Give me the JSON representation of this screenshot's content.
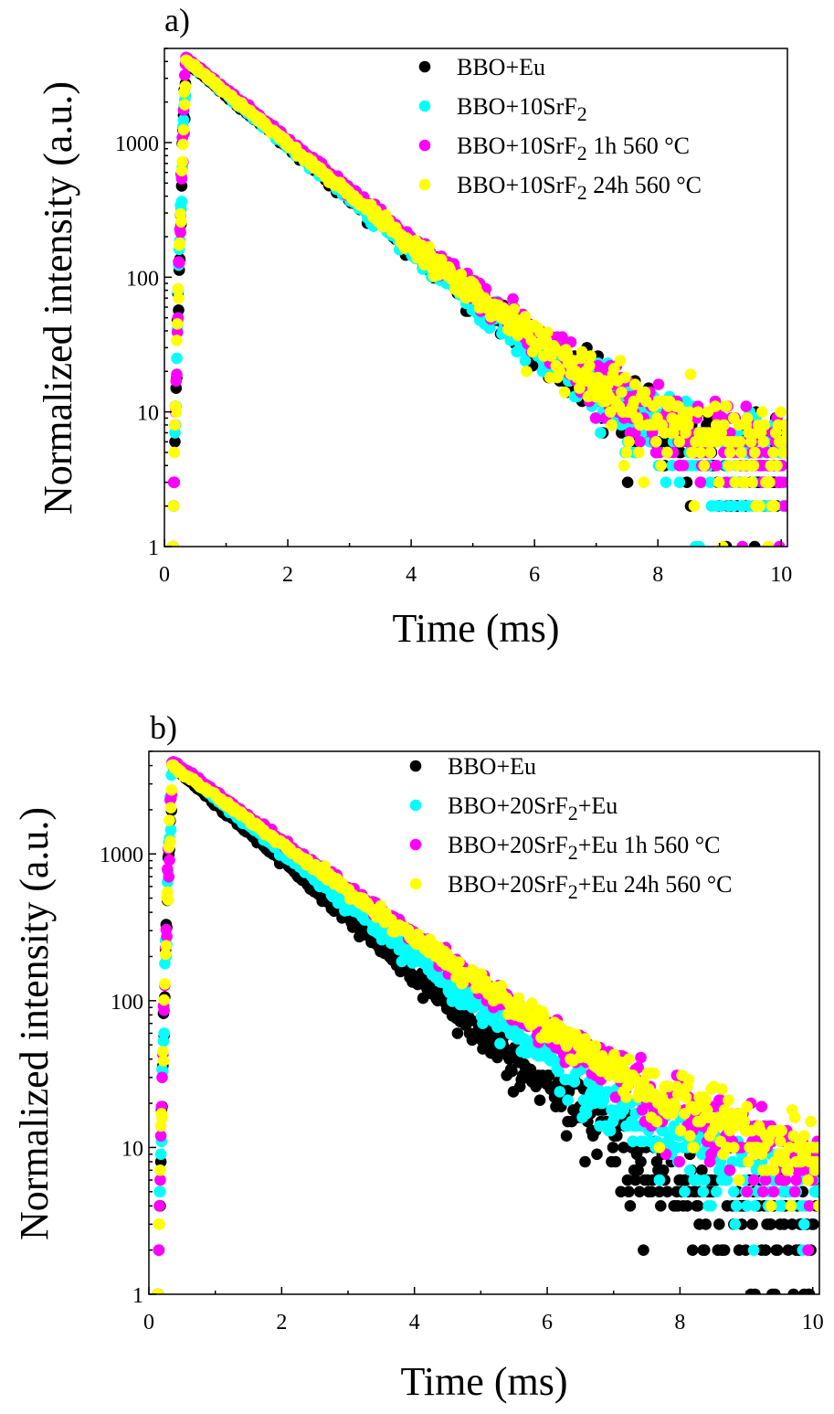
{
  "chart_data": [
    {
      "type": "scatter",
      "panel_label": "a)",
      "xlabel": "Time (ms)",
      "ylabel": "Normalized intensity (a.u.)",
      "xlim": [
        0,
        10.1
      ],
      "ylim": [
        1,
        5000
      ],
      "yscale": "log",
      "x_ticks": [
        0,
        2,
        4,
        6,
        8,
        10
      ],
      "x_tick_labels": [
        "0",
        "2",
        "4",
        "6",
        "8",
        "10"
      ],
      "y_ticks": [
        1,
        10,
        100,
        1000
      ],
      "y_tick_labels": [
        "1",
        "10",
        "100",
        "1000"
      ],
      "legend_position": "top-right",
      "series": [
        {
          "name": "BBO+Eu",
          "label_base": "BBO+Eu",
          "label_sub": "",
          "label_tail": "",
          "color": "#000000",
          "tau": 1.142,
          "peak": 4000,
          "floor": 3.0,
          "seed": 11
        },
        {
          "name": "BBO+10SrF2",
          "label_base": "BBO+10SrF",
          "label_sub": "2",
          "label_tail": "",
          "color": "#00ffff",
          "tau": 1.13,
          "peak": 4100,
          "floor": 3.3,
          "seed": 23
        },
        {
          "name": "BBO+10SrF2 1h 560 °C",
          "label_base": "BBO+10SrF",
          "label_sub": "2",
          "label_tail": " 1h 560 °C",
          "color": "#ff00ff",
          "tau": 1.16,
          "peak": 4300,
          "floor": 3.6,
          "seed": 37
        },
        {
          "name": "BBO+10SrF2 24h 560 °C",
          "label_base": "BBO+10SrF",
          "label_sub": "2",
          "label_tail": " 24h 560 °C",
          "color": "#ffff00",
          "tau": 1.15,
          "peak": 4100,
          "floor": 3.8,
          "seed": 41
        }
      ]
    },
    {
      "type": "scatter",
      "panel_label": "b)",
      "xlabel": "Time (ms)",
      "ylabel": "Normalized intensity (a.u.)",
      "xlim": [
        0,
        10.1
      ],
      "ylim": [
        1,
        5000
      ],
      "yscale": "log",
      "x_ticks": [
        0,
        2,
        4,
        6,
        8,
        10
      ],
      "x_tick_labels": [
        "0",
        "2",
        "4",
        "6",
        "8",
        "10"
      ],
      "y_ticks": [
        1,
        10,
        100,
        1000
      ],
      "y_tick_labels": [
        "1",
        "10",
        "100",
        "1000"
      ],
      "legend_position": "top-right",
      "series": [
        {
          "name": "BBO+Eu",
          "label_base": "BBO+Eu",
          "label_sub": "",
          "label_tail": "",
          "color": "#000000",
          "tau": 1.1,
          "peak": 4000,
          "floor": 2.5,
          "seed": 53
        },
        {
          "name": "BBO+20SrF2+Eu",
          "label_base": "BBO+20SrF",
          "label_sub": "2",
          "label_tail": "+Eu",
          "color": "#00ffff",
          "tau": 1.2,
          "peak": 4100,
          "floor": 4.0,
          "seed": 67
        },
        {
          "name": "BBO+20SrF2+Eu 1h 560 °C",
          "label_base": "BBO+20SrF",
          "label_sub": "2",
          "label_tail": "+Eu 1h 560 °C",
          "color": "#ff00ff",
          "tau": 1.32,
          "peak": 4300,
          "floor": 5.5,
          "seed": 71
        },
        {
          "name": "BBO+20SrF2+Eu 24h 560 °C",
          "label_base": "BBO+20SrF",
          "label_sub": "2",
          "label_tail": "+Eu 24h 560 °C",
          "color": "#ffff00",
          "tau": 1.34,
          "peak": 4000,
          "floor": 6.5,
          "seed": 89
        }
      ]
    }
  ]
}
